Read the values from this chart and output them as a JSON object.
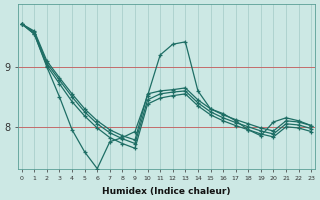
{
  "xlabel": "Humidex (Indice chaleur)",
  "bg_color": "#cce8e4",
  "grid_color": "#aad0cb",
  "line_color": "#1e6e65",
  "x_values": [
    0,
    1,
    2,
    3,
    4,
    5,
    6,
    7,
    8,
    9,
    10,
    11,
    12,
    13,
    14,
    15,
    16,
    17,
    18,
    19,
    20,
    21,
    22,
    23
  ],
  "series": [
    [
      9.72,
      9.6,
      9.1,
      8.82,
      8.55,
      8.3,
      8.1,
      7.95,
      7.85,
      7.78,
      8.55,
      8.6,
      8.62,
      8.65,
      8.45,
      8.3,
      8.2,
      8.12,
      8.05,
      7.98,
      7.93,
      8.1,
      8.08,
      8.02
    ],
    [
      9.72,
      9.58,
      9.06,
      8.78,
      8.5,
      8.25,
      8.05,
      7.9,
      7.8,
      7.72,
      8.45,
      8.55,
      8.58,
      8.6,
      8.4,
      8.25,
      8.15,
      8.07,
      8.0,
      7.93,
      7.88,
      8.05,
      8.03,
      7.97
    ],
    [
      9.72,
      9.55,
      9.02,
      8.72,
      8.42,
      8.18,
      7.98,
      7.82,
      7.72,
      7.64,
      8.38,
      8.48,
      8.52,
      8.55,
      8.35,
      8.2,
      8.1,
      8.02,
      7.95,
      7.88,
      7.83,
      8.0,
      7.98,
      7.92
    ],
    [
      9.72,
      9.55,
      9.0,
      8.5,
      7.95,
      7.58,
      7.3,
      7.75,
      7.82,
      7.92,
      8.52,
      9.2,
      9.38,
      9.42,
      8.6,
      8.3,
      8.22,
      8.1,
      7.95,
      7.85,
      8.08,
      8.15,
      8.1,
      8.02
    ]
  ],
  "yticks": [
    8,
    9
  ],
  "ylim": [
    7.3,
    10.05
  ],
  "xlim": [
    -0.3,
    23.3
  ]
}
